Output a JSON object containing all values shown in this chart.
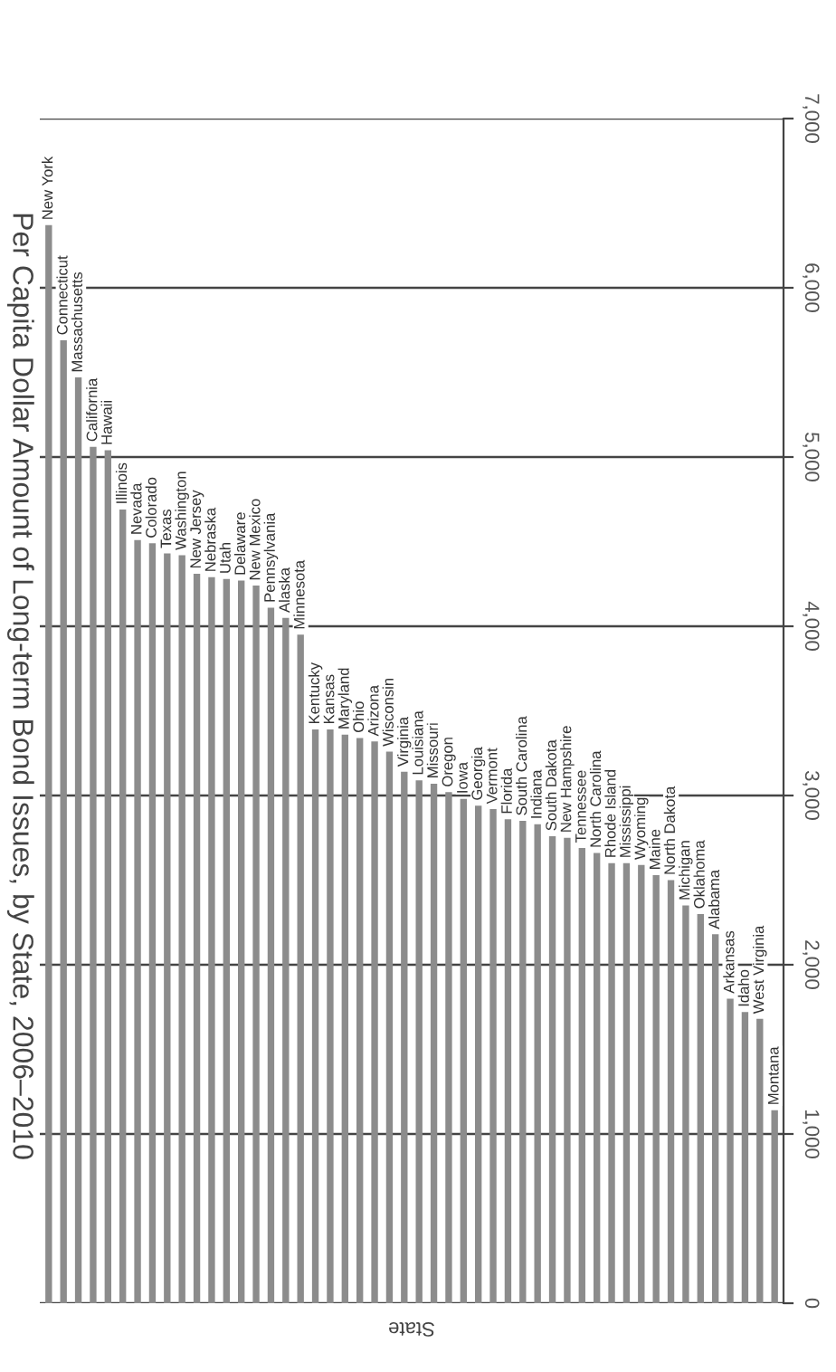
{
  "chart_data": {
    "type": "bar",
    "title": "Per Capita Dollar Amount of Long-term Bond Issues, by State, 2006–2010",
    "xlabel": "State",
    "categories": [
      "New York",
      "Connecticut",
      "Massachusetts",
      "California",
      "Hawaii",
      "Illinois",
      "Nevada",
      "Colorado",
      "Texas",
      "Washington",
      "New Jersey",
      "Nebraska",
      "Utah",
      "Delaware",
      "New Mexico",
      "Pennsylvania",
      "Alaska",
      "Minnesota",
      "Kentucky",
      "Kansas",
      "Maryland",
      "Ohio",
      "Arizona",
      "Wisconsin",
      "Virginia",
      "Louisiana",
      "Missouri",
      "Oregon",
      "Iowa",
      "Georgia",
      "Vermont",
      "Florida",
      "South Carolina",
      "Indiana",
      "South Dakota",
      "New Hampshire",
      "Tennessee",
      "North Carolina",
      "Rhode Island",
      "Mississippi",
      "Wyoming",
      "Maine",
      "North Dakota",
      "Michigan",
      "Oklahoma",
      "Alabama",
      "Arkansas",
      "Idaho",
      "West Virginia",
      "Montana"
    ],
    "values": [
      6370,
      5690,
      5470,
      5060,
      5040,
      4690,
      4510,
      4490,
      4430,
      4420,
      4310,
      4290,
      4280,
      4270,
      4240,
      4110,
      4050,
      3950,
      3390,
      3390,
      3360,
      3340,
      3320,
      3260,
      3140,
      3090,
      3070,
      3020,
      2980,
      2940,
      2920,
      2860,
      2850,
      2830,
      2760,
      2750,
      2690,
      2660,
      2600,
      2600,
      2590,
      2530,
      2500,
      2350,
      2300,
      2180,
      1800,
      1720,
      1680,
      1140
    ],
    "color": "#8c8c8c",
    "ylim": [
      0,
      7000
    ],
    "yticks": [
      0,
      {
        "value": 1000,
        "label": "1,000"
      },
      {
        "value": 2000,
        "label": "2,000"
      },
      {
        "value": 3000,
        "label": "3,000"
      },
      {
        "value": 4000,
        "label": "4,000"
      },
      {
        "value": 5000,
        "label": "5,000"
      },
      {
        "value": 6000,
        "label": "6,000"
      },
      {
        "value": 7000,
        "label": "7,000"
      }
    ],
    "grid": "y",
    "tick_labels": "y",
    "legend": false
  }
}
